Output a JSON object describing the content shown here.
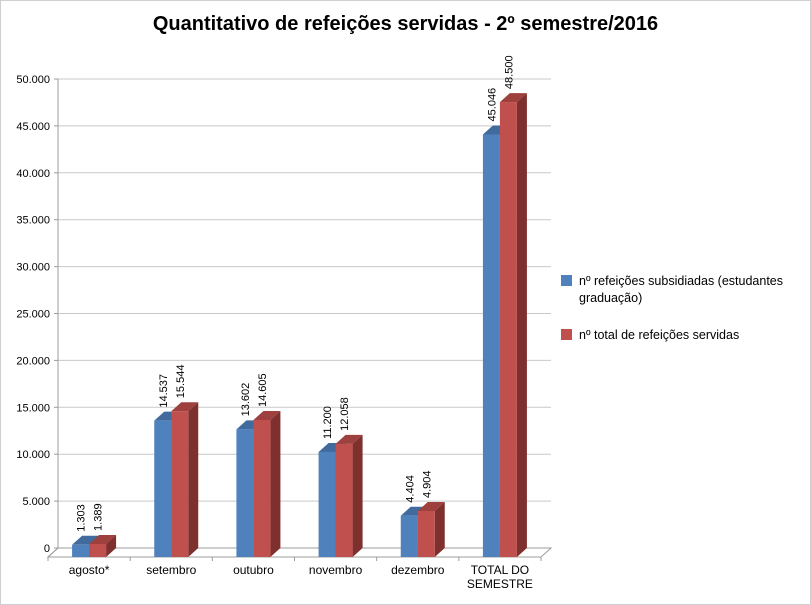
{
  "chart_data": {
    "type": "bar",
    "style": "3d-clustered-column",
    "title": "Quantitativo de refeições servidas - 2º semestre/2016",
    "categories": [
      "agosto*",
      "setembro",
      "outubro",
      "novembro",
      "dezembro",
      "TOTAL DO\nSEMESTRE"
    ],
    "series": [
      {
        "name": "nº refeições subsidiadas (estudantes graduação)",
        "values": [
          1303,
          14537,
          13602,
          11200,
          4404,
          45046
        ],
        "value_labels": [
          "1.303",
          "14.537",
          "13.602",
          "11.200",
          "4.404",
          "45.046"
        ],
        "color": "#4F81BD",
        "color_top": "#416b9d",
        "color_side": "#31527a"
      },
      {
        "name": "nº total de refeições servidas",
        "values": [
          1389,
          15544,
          14605,
          12058,
          4904,
          48500
        ],
        "value_labels": [
          "1.389",
          "15.544",
          "14.605",
          "12.058",
          "4.904",
          "48.500"
        ],
        "color": "#C0504D",
        "color_top": "#9e403e",
        "color_side": "#7d302e"
      }
    ],
    "xlabel": "",
    "ylabel": "",
    "ylim": [
      0,
      50000
    ],
    "ytick_values": [
      0,
      5000,
      10000,
      15000,
      20000,
      25000,
      30000,
      35000,
      40000,
      45000,
      50000
    ],
    "ytick_labels": [
      "0",
      "5.000",
      "10.000",
      "15.000",
      "20.000",
      "25.000",
      "30.000",
      "35.000",
      "40.000",
      "45.000",
      "50.000"
    ],
    "grid": true,
    "legend_position": "right"
  }
}
